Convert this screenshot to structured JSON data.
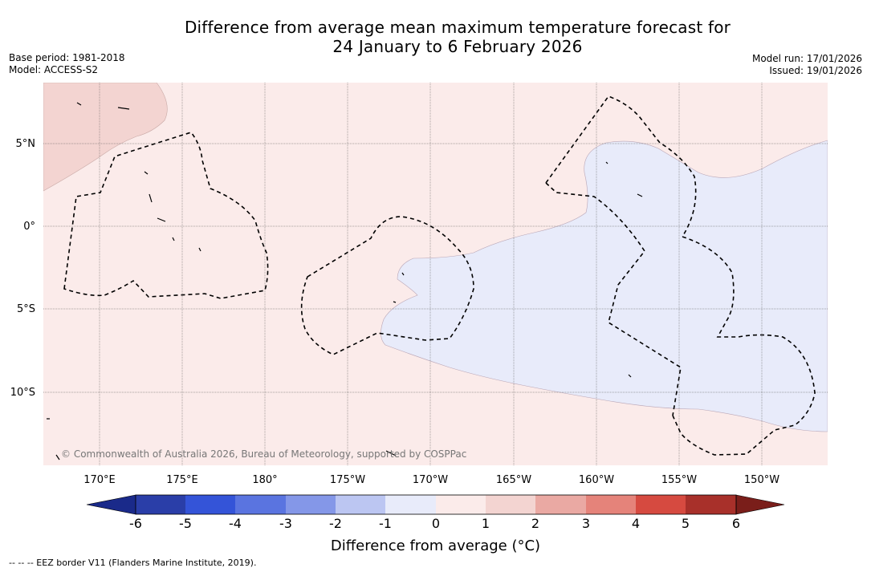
{
  "title": {
    "line1": "Difference from average mean maximum temperature forecast for",
    "line2": "24 January to 6 February 2026"
  },
  "meta": {
    "base_period": "Base period: 1981-2018",
    "model": "Model: ACCESS-S2",
    "model_run": "Model run: 17/01/2026",
    "issued": "Issued: 19/01/2026"
  },
  "map": {
    "lat_labels": [
      "5°N",
      "0°",
      "5°S",
      "10°S"
    ],
    "lon_labels": [
      "170°E",
      "175°E",
      "180°",
      "175°W",
      "170°W",
      "165°W",
      "160°W",
      "155°W",
      "150°W"
    ],
    "copyright": "© Commonwealth of Australia 2026, Bureau of Meteorology, supported by COSPPac",
    "colors": {
      "ocean_anomaly_0_to_1": "#fbebea",
      "anomaly_1_to_2": "#f3d4d1",
      "anomaly_minus1_to_0": "#e8ebfa",
      "eez_border": "#000000",
      "grid": "#555555"
    }
  },
  "colorbar": {
    "tick_labels": [
      "-6",
      "-5",
      "-4",
      "-3",
      "-2",
      "-1",
      "0",
      "1",
      "2",
      "3",
      "4",
      "5",
      "6"
    ],
    "colors": [
      "#1a2a8a",
      "#2a3ea8",
      "#3454d8",
      "#5a74e0",
      "#8497e8",
      "#bcc6f2",
      "#e8ebfa",
      "#fbebea",
      "#f3d4d1",
      "#eaa9a3",
      "#e5837a",
      "#d64a40",
      "#a8302a",
      "#7a1e1a"
    ],
    "title": "Difference from average (°C)"
  },
  "footer": {
    "legend_text": "--  --  -- EEZ border V11 (Flanders Marine Institute, 2019)."
  }
}
